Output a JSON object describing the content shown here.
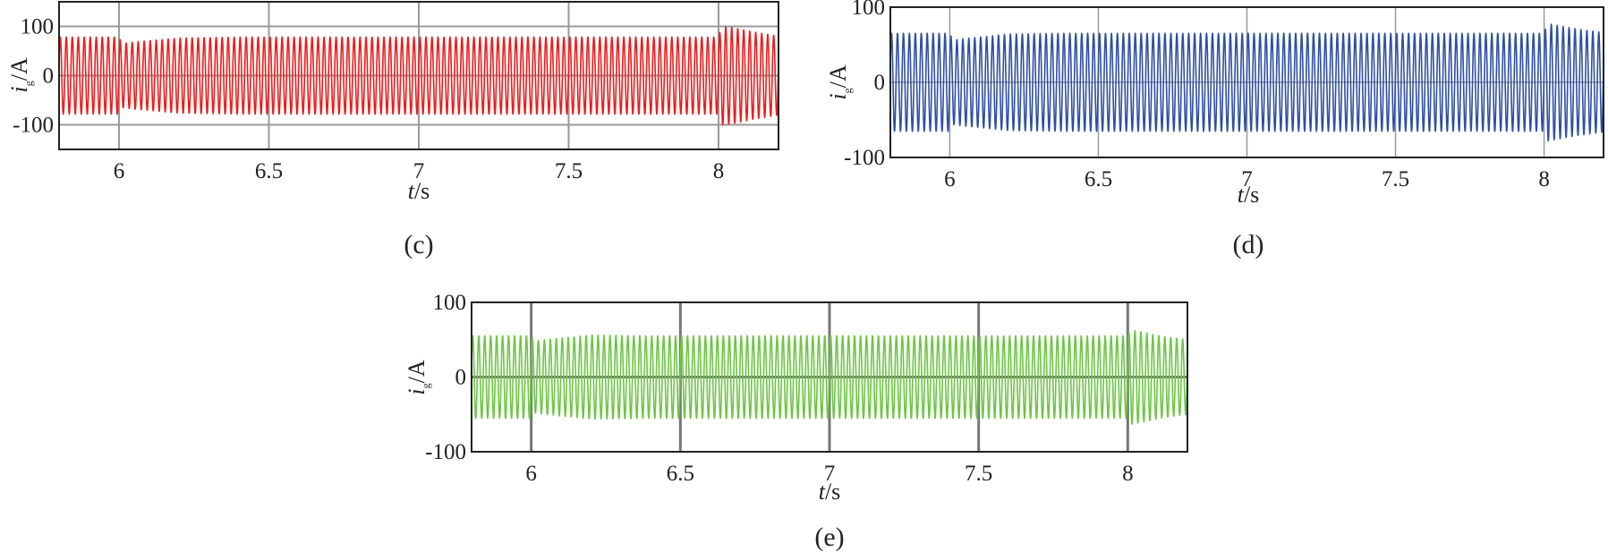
{
  "chart_data": [
    {
      "panel_label": "(c)",
      "type": "line",
      "color": "#ee1c1c",
      "xlabel": {
        "var": "t",
        "unit": "/s"
      },
      "ylabel": {
        "var": "i",
        "sub": "g",
        "unit": "/A"
      },
      "xlim": [
        5.8,
        8.2
      ],
      "ylim": [
        -150,
        150
      ],
      "xticks": [
        6,
        6.5,
        7,
        7.5,
        8
      ],
      "xtick_labels": [
        "6",
        "6.5",
        "7",
        "7.5",
        "8"
      ],
      "yticks": [
        -100,
        0,
        100
      ],
      "ytick_labels": [
        "-100",
        "0",
        "100"
      ],
      "grid": true,
      "series": [
        {
          "frequency_hz": 50,
          "amplitude_envelope": {
            "t": [
              5.8,
              6.0,
              6.01,
              6.05,
              6.2,
              6.4,
              8.0,
              8.01,
              8.05,
              8.12,
              8.2
            ],
            "amp": [
              78,
              78,
              65,
              68,
              76,
              78,
              78,
              100,
              97,
              88,
              80
            ]
          }
        }
      ]
    },
    {
      "panel_label": "(d)",
      "type": "line",
      "color": "#2e4fa6",
      "xlabel": {
        "var": "t",
        "unit": "/s"
      },
      "ylabel": {
        "var": "i",
        "sub": "g",
        "unit": "/A"
      },
      "xlim": [
        5.8,
        8.2
      ],
      "ylim": [
        -100,
        100
      ],
      "xticks": [
        6,
        6.5,
        7,
        7.5,
        8
      ],
      "xtick_labels": [
        "6",
        "6.5",
        "7",
        "7.5",
        "8"
      ],
      "yticks": [
        -100,
        0,
        100
      ],
      "ytick_labels": [
        "-100",
        "0",
        "100"
      ],
      "grid": true,
      "series": [
        {
          "frequency_hz": 50,
          "amplitude_envelope": {
            "t": [
              5.8,
              6.0,
              6.01,
              6.05,
              6.2,
              6.4,
              8.0,
              8.01,
              8.05,
              8.12,
              8.2
            ],
            "amp": [
              65,
              65,
              56,
              58,
              64,
              65,
              65,
              78,
              75,
              70,
              66
            ]
          }
        }
      ]
    },
    {
      "panel_label": "(e)",
      "type": "line",
      "color": "#6cc644",
      "xlabel": {
        "var": "t",
        "unit": "/s"
      },
      "ylabel": {
        "var": "i",
        "sub": "g",
        "unit": "/A"
      },
      "xlim": [
        5.8,
        8.2
      ],
      "ylim": [
        -100,
        100
      ],
      "xticks": [
        6,
        6.5,
        7,
        7.5,
        8
      ],
      "xtick_labels": [
        "6",
        "6.5",
        "7",
        "7.5",
        "8"
      ],
      "yticks": [
        -100,
        0,
        100
      ],
      "ytick_labels": [
        "-100",
        "0",
        "100"
      ],
      "grid": true,
      "series": [
        {
          "frequency_hz": 50,
          "amplitude_envelope": {
            "t": [
              5.8,
              6.0,
              6.01,
              6.05,
              6.2,
              6.4,
              8.0,
              8.01,
              8.05,
              8.12,
              8.2
            ],
            "amp": [
              55,
              55,
              48,
              50,
              56,
              55,
              55,
              63,
              60,
              54,
              50
            ]
          }
        }
      ]
    }
  ]
}
